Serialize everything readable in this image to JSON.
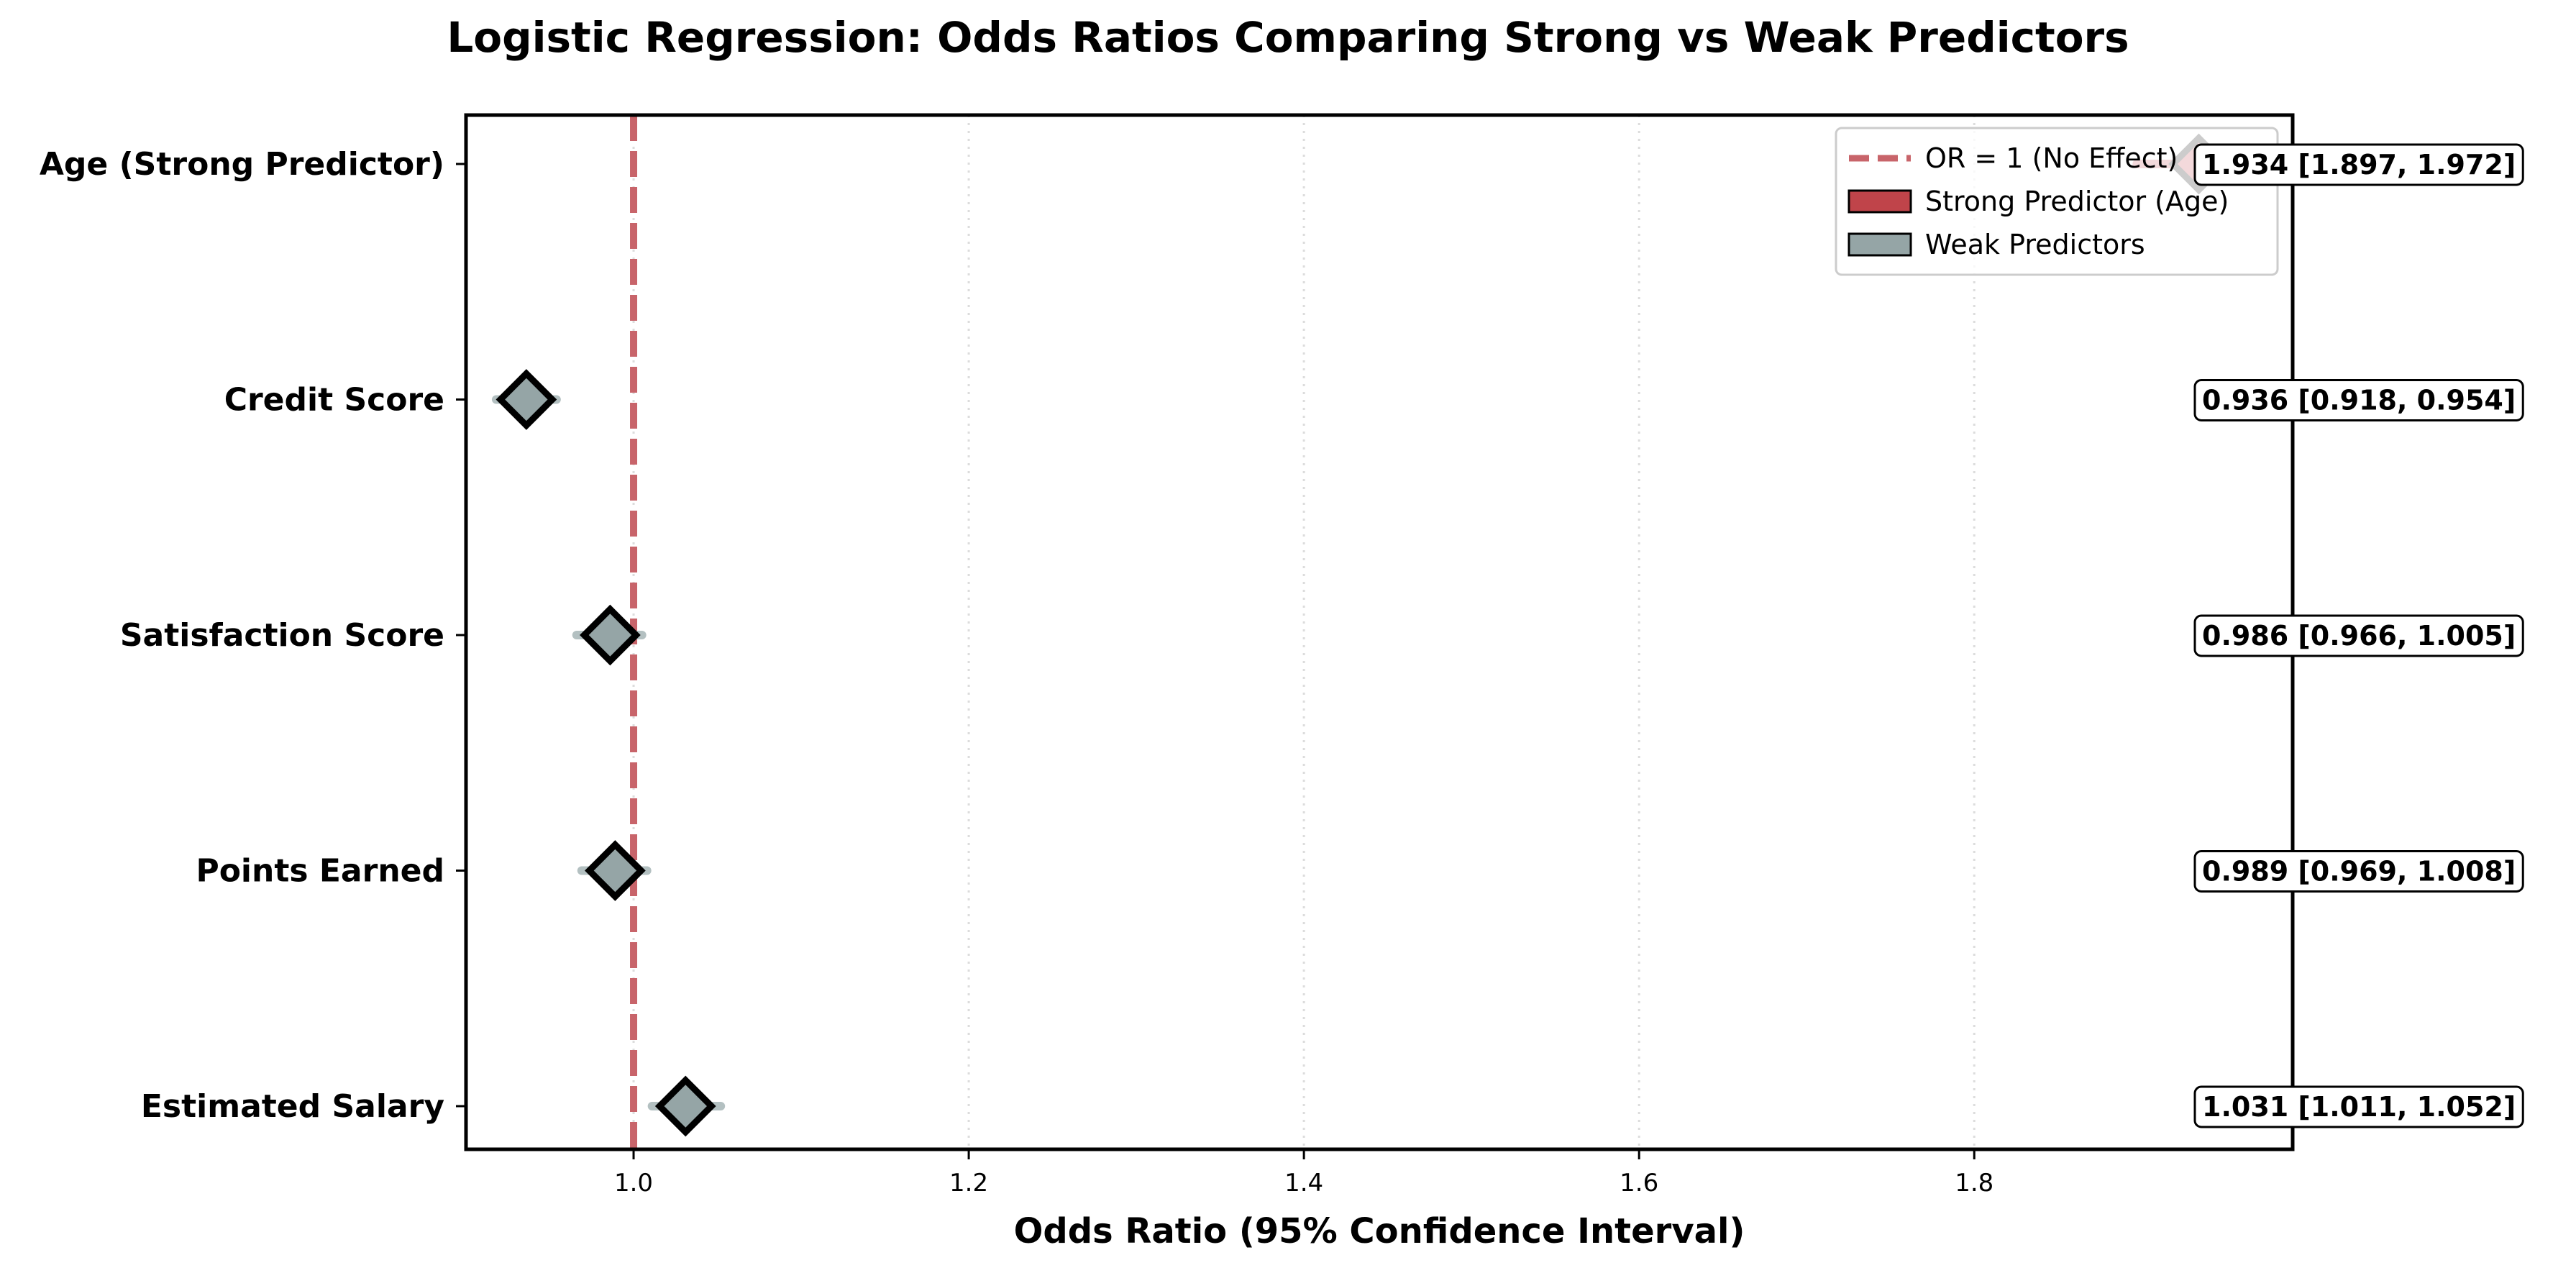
{
  "chart_data": {
    "type": "forest",
    "title": "Logistic Regression: Odds Ratios Comparing Strong vs Weak Predictors",
    "xlabel": "Odds Ratio (95% Confidence Interval)",
    "ylabel": "",
    "xlim": [
      0.9,
      1.99
    ],
    "xticks": [
      1.0,
      1.2,
      1.4,
      1.6,
      1.8
    ],
    "xtick_labels": [
      "1.0",
      "1.2",
      "1.4",
      "1.6",
      "1.8"
    ],
    "grid": "vertical dotted",
    "reference_line": {
      "x": 1.0,
      "label": "OR = 1 (No Effect)",
      "color": "#c8646a",
      "style": "dashed"
    },
    "legend": {
      "placement": "top-right",
      "entries": [
        {
          "label": "OR = 1 (No Effect)",
          "kind": "dashed-line",
          "color": "#c8646a"
        },
        {
          "label": "Strong Predictor (Age)",
          "kind": "patch",
          "color": "#c0444a"
        },
        {
          "label": "Weak Predictors",
          "kind": "patch",
          "color": "#95a5a6"
        }
      ]
    },
    "colors": {
      "strong": "#c0444a",
      "weak": "#95a5a6",
      "ci_weak": "#b3c0c1",
      "reference": "#c8646a"
    },
    "series": [
      {
        "name": "Age (Strong Predictor)",
        "group": "strong",
        "or": 1.934,
        "ci": [
          1.897,
          1.972
        ],
        "label": "1.934  [1.897, 1.972]"
      },
      {
        "name": "Credit Score",
        "group": "weak",
        "or": 0.936,
        "ci": [
          0.918,
          0.954
        ],
        "label": "0.936  [0.918, 0.954]"
      },
      {
        "name": "Satisfaction Score",
        "group": "weak",
        "or": 0.986,
        "ci": [
          0.966,
          1.005
        ],
        "label": "0.986  [0.966, 1.005]"
      },
      {
        "name": "Points Earned",
        "group": "weak",
        "or": 0.989,
        "ci": [
          0.969,
          1.008
        ],
        "label": "0.989  [0.969, 1.008]"
      },
      {
        "name": "Estimated Salary",
        "group": "weak",
        "or": 1.031,
        "ci": [
          1.011,
          1.052
        ],
        "label": "1.031  [1.011, 1.052]"
      }
    ]
  }
}
